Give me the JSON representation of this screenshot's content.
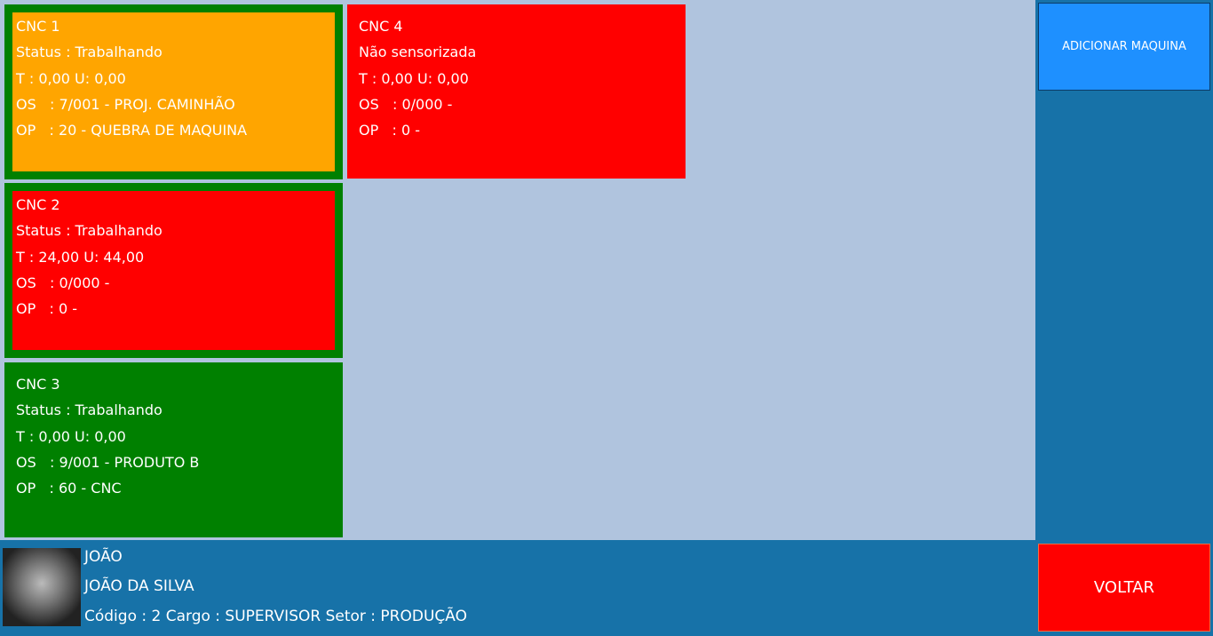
{
  "machines": [
    {
      "name": "CNC 1",
      "status": "Status : Trabalhando",
      "readings": "T : 0,00 U: 0,00",
      "os": "OS   : 7/001 - PROJ. CAMINHÃO",
      "op": "OP   : 20 - QUEBRA DE MAQUINA",
      "color": "#ffa500",
      "border": "#008000"
    },
    {
      "name": "CNC 2",
      "status": "Status : Trabalhando",
      "readings": "T : 24,00 U: 44,00",
      "os": "OS   : 0/000 -",
      "op": "OP   : 0 -",
      "color": "#ff0000",
      "border": "#008000"
    },
    {
      "name": "CNC 3",
      "status": "Status : Trabalhando",
      "readings": "T : 0,00 U: 0,00",
      "os": "OS   : 9/001 - PRODUTO B",
      "op": "OP   : 60 - CNC",
      "color": "#008000"
    },
    {
      "name": "CNC 4",
      "status": "Não sensorizada",
      "readings": "T : 0,00 U: 0,00",
      "os": "OS   : 0/000 -",
      "op": "OP   : 0 -",
      "color": "#ff0000"
    }
  ],
  "buttons": {
    "add": "ADICIONAR MAQUINA",
    "back": "VOLTAR"
  },
  "user": {
    "login": "JOÃO",
    "name": "JOÃO DA SILVA",
    "details": "Código : 2 Cargo : SUPERVISOR Setor : PRODUÇÃO"
  }
}
